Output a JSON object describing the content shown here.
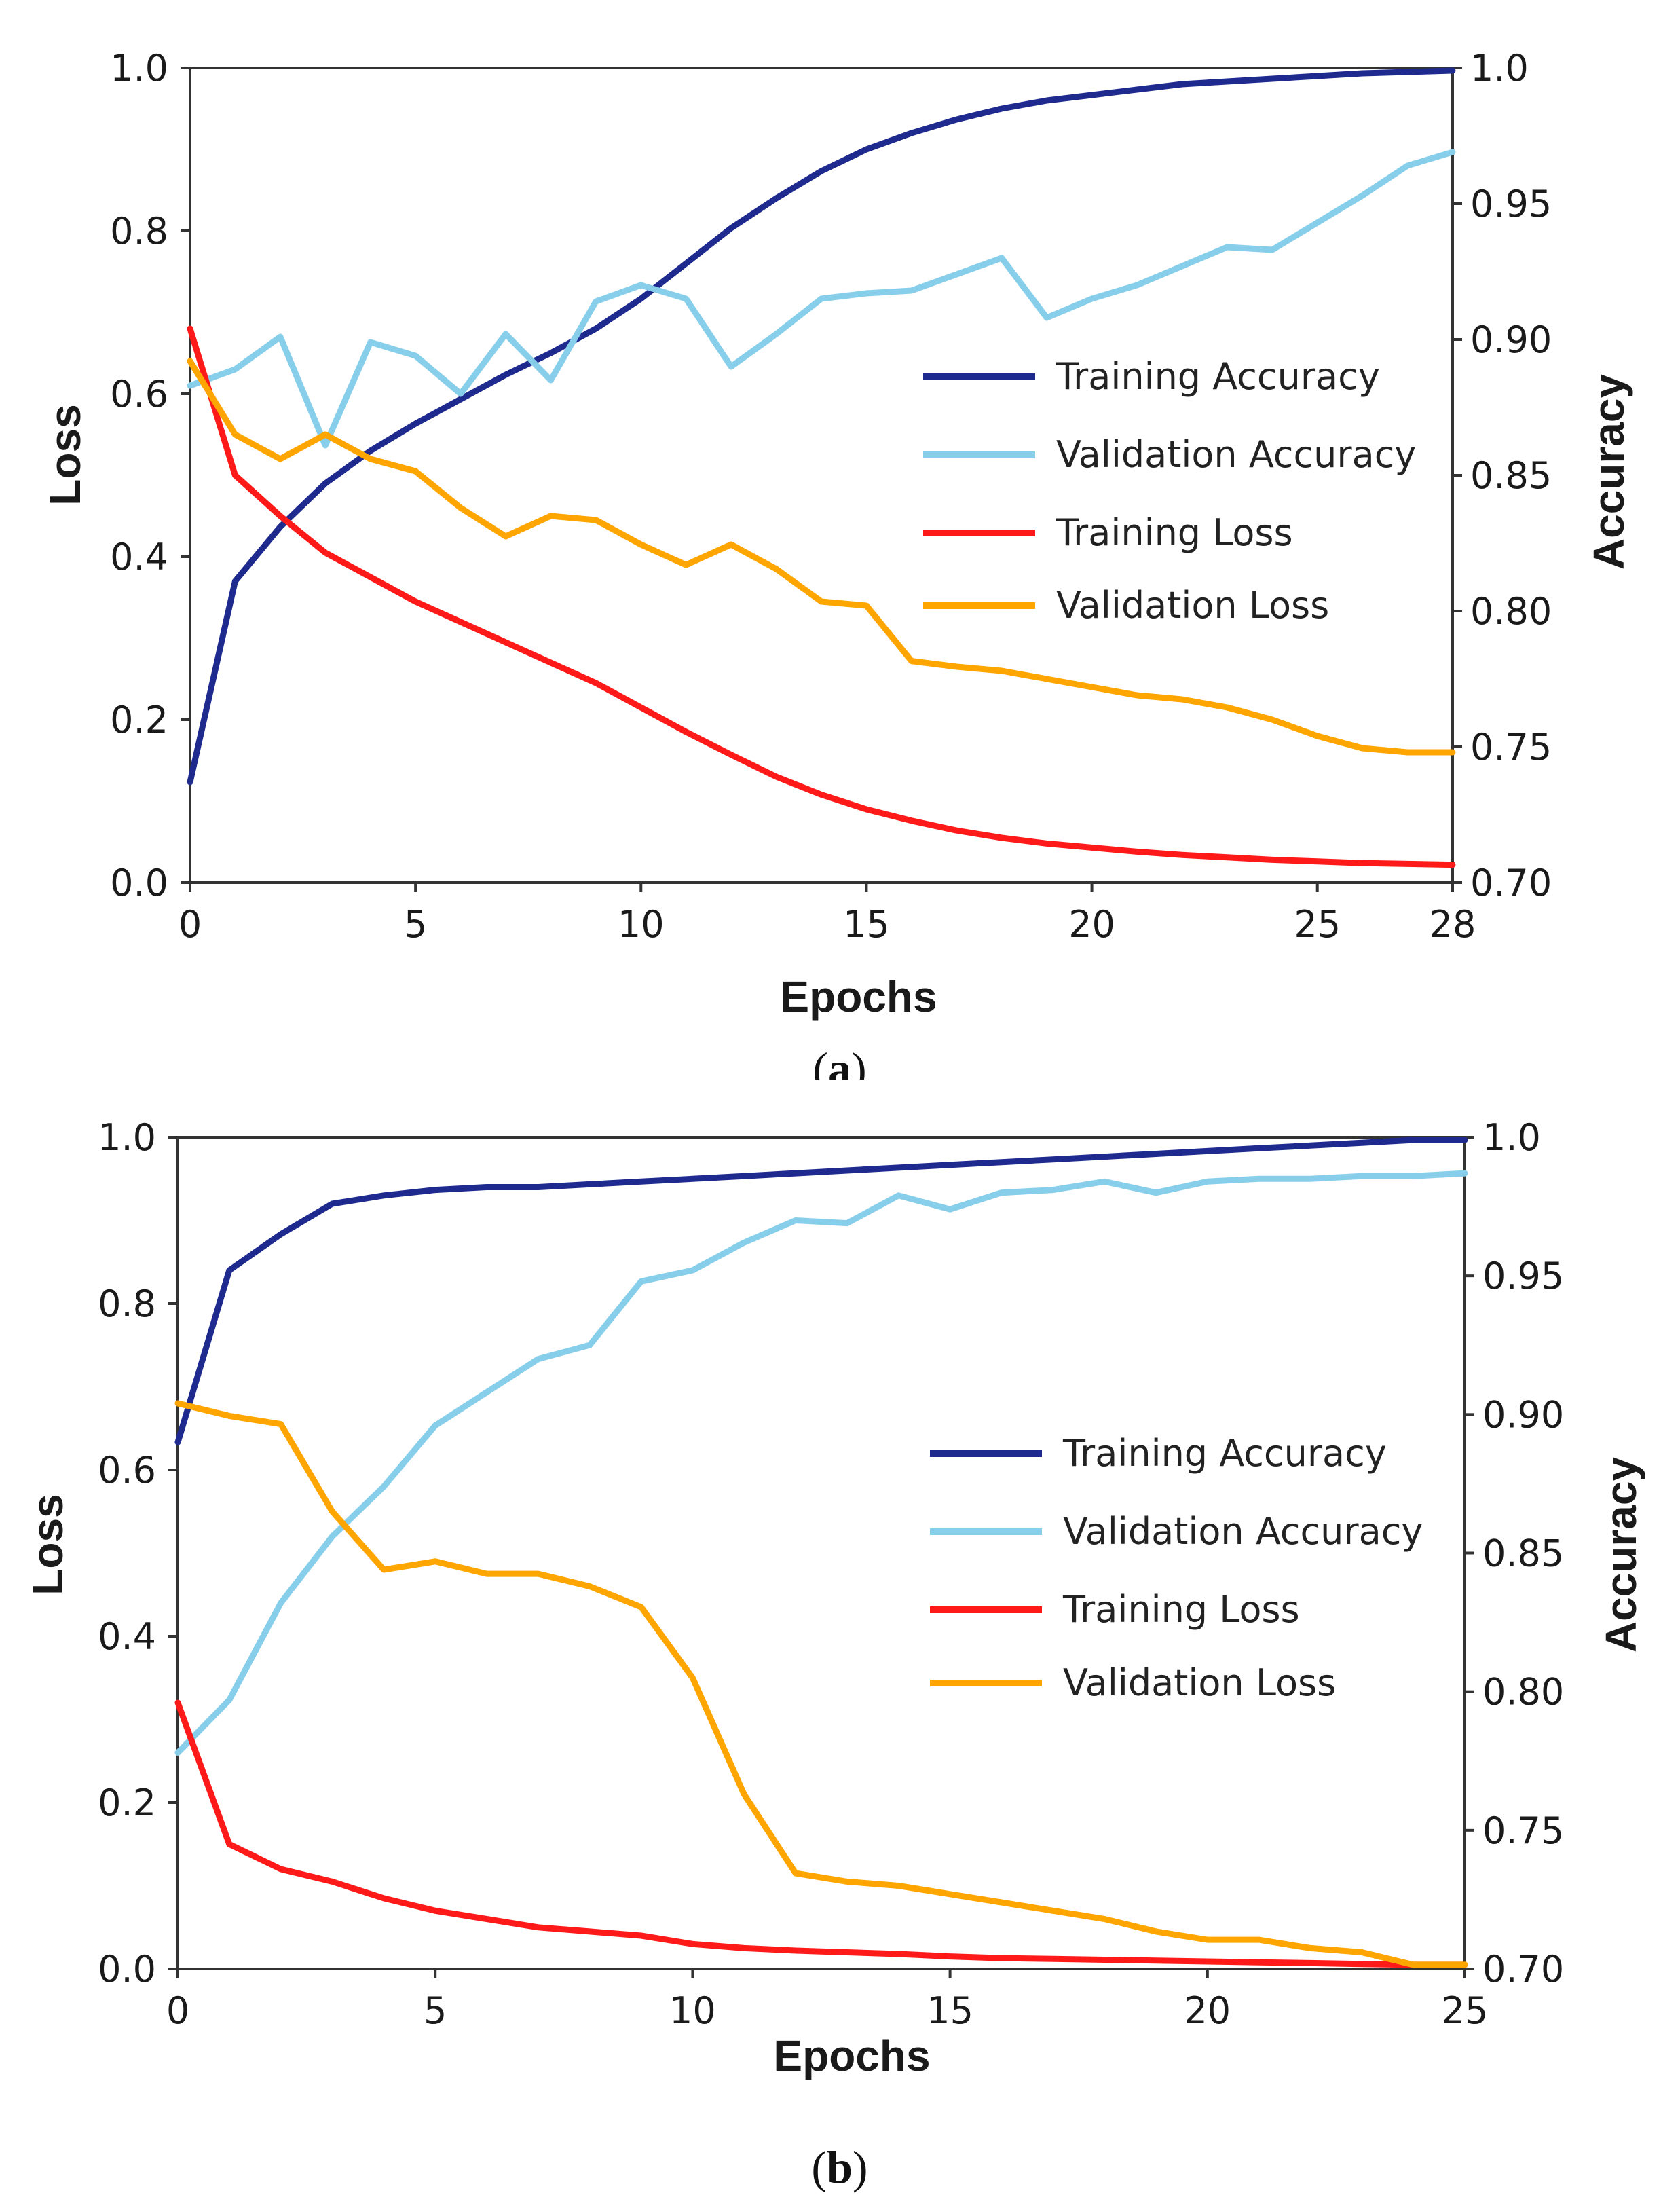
{
  "chart_data": [
    {
      "id": "a",
      "type": "line",
      "caption_letter": "a",
      "xlabel": "Epochs",
      "ylabel_left": "Loss",
      "ylabel_right": "Accuracy",
      "xlim": [
        0,
        28
      ],
      "ylim_left": [
        0.0,
        1.0
      ],
      "ylim_right": [
        0.7,
        1.0
      ],
      "x_ticks": [
        0,
        5,
        10,
        15,
        20,
        25,
        28
      ],
      "x_tick_labels": [
        "0",
        "5",
        "10",
        "15",
        "20",
        "25",
        "28"
      ],
      "left_ticks": [
        0.0,
        0.2,
        0.4,
        0.6,
        0.8,
        1.0
      ],
      "left_tick_labels": [
        "0.0",
        "0.2",
        "0.4",
        "0.6",
        "0.8",
        "1.0"
      ],
      "right_ticks": [
        0.7,
        0.75,
        0.8,
        0.85,
        0.9,
        0.95,
        1.0
      ],
      "right_tick_labels": [
        "0.70",
        "0.75",
        "0.80",
        "0.85",
        "0.90",
        "0.95",
        "1.0"
      ],
      "grid": false,
      "legend_position": "center-right",
      "series": [
        {
          "name": "Training Accuracy",
          "axis": "right",
          "color": "#1f2a8f",
          "x": [
            0,
            1,
            2,
            3,
            4,
            5,
            6,
            7,
            8,
            9,
            10,
            11,
            12,
            13,
            14,
            15,
            16,
            17,
            18,
            19,
            20,
            21,
            22,
            23,
            24,
            25,
            26,
            27,
            28
          ],
          "values": [
            0.737,
            0.811,
            0.831,
            0.847,
            0.859,
            0.869,
            0.878,
            0.887,
            0.895,
            0.904,
            0.915,
            0.928,
            0.941,
            0.952,
            0.962,
            0.97,
            0.976,
            0.981,
            0.985,
            0.988,
            0.99,
            0.992,
            0.994,
            0.995,
            0.996,
            0.997,
            0.998,
            0.9985,
            0.999
          ]
        },
        {
          "name": "Validation Accuracy",
          "axis": "right",
          "color": "#87ceeb",
          "x": [
            0,
            1,
            2,
            3,
            4,
            5,
            6,
            7,
            8,
            9,
            10,
            11,
            12,
            13,
            14,
            15,
            16,
            17,
            18,
            19,
            20,
            21,
            22,
            23,
            24,
            25,
            26,
            27,
            28
          ],
          "values": [
            0.883,
            0.889,
            0.901,
            0.861,
            0.899,
            0.894,
            0.88,
            0.902,
            0.885,
            0.914,
            0.92,
            0.915,
            0.89,
            0.902,
            0.915,
            0.917,
            0.918,
            0.924,
            0.93,
            0.908,
            0.915,
            0.92,
            0.927,
            0.934,
            0.933,
            0.943,
            0.953,
            0.964,
            0.969
          ]
        },
        {
          "name": "Training Loss",
          "axis": "left",
          "color": "#ff1a1a",
          "x": [
            0,
            1,
            2,
            3,
            4,
            5,
            6,
            7,
            8,
            9,
            10,
            11,
            12,
            13,
            14,
            15,
            16,
            17,
            18,
            19,
            20,
            21,
            22,
            23,
            24,
            25,
            26,
            27,
            28
          ],
          "values": [
            0.68,
            0.5,
            0.45,
            0.405,
            0.375,
            0.345,
            0.32,
            0.295,
            0.27,
            0.245,
            0.215,
            0.185,
            0.157,
            0.13,
            0.108,
            0.09,
            0.076,
            0.064,
            0.055,
            0.048,
            0.043,
            0.038,
            0.034,
            0.031,
            0.028,
            0.026,
            0.024,
            0.023,
            0.022
          ]
        },
        {
          "name": "Validation Loss",
          "axis": "left",
          "color": "#ffa500",
          "x": [
            0,
            1,
            2,
            3,
            4,
            5,
            6,
            7,
            8,
            9,
            10,
            11,
            12,
            13,
            14,
            15,
            16,
            17,
            18,
            19,
            20,
            21,
            22,
            23,
            24,
            25,
            26,
            27,
            28
          ],
          "values": [
            0.64,
            0.55,
            0.52,
            0.55,
            0.52,
            0.505,
            0.46,
            0.425,
            0.45,
            0.445,
            0.415,
            0.39,
            0.415,
            0.385,
            0.345,
            0.34,
            0.272,
            0.265,
            0.26,
            0.25,
            0.24,
            0.23,
            0.225,
            0.215,
            0.2,
            0.18,
            0.165,
            0.16,
            0.16
          ]
        }
      ]
    },
    {
      "id": "b",
      "type": "line",
      "caption_letter": "b",
      "xlabel": "Epochs",
      "ylabel_left": "Loss",
      "ylabel_right": "Accuracy",
      "xlim": [
        0,
        25
      ],
      "ylim_left": [
        0.0,
        1.0
      ],
      "ylim_right": [
        0.7,
        1.0
      ],
      "x_ticks": [
        0,
        5,
        10,
        15,
        20,
        25
      ],
      "x_tick_labels": [
        "0",
        "5",
        "10",
        "15",
        "20",
        "25"
      ],
      "left_ticks": [
        0.0,
        0.2,
        0.4,
        0.6,
        0.8,
        1.0
      ],
      "left_tick_labels": [
        "0.0",
        "0.2",
        "0.4",
        "0.6",
        "0.8",
        "1.0"
      ],
      "right_ticks": [
        0.7,
        0.75,
        0.8,
        0.85,
        0.9,
        0.95,
        1.0
      ],
      "right_tick_labels": [
        "0.70",
        "0.75",
        "0.80",
        "0.85",
        "0.90",
        "0.95",
        "1.0"
      ],
      "grid": false,
      "legend_position": "center-right",
      "series": [
        {
          "name": "Training Accuracy",
          "axis": "right",
          "color": "#1f2a8f",
          "x": [
            0,
            1,
            2,
            3,
            4,
            5,
            6,
            7,
            8,
            9,
            10,
            11,
            12,
            13,
            14,
            15,
            16,
            17,
            18,
            19,
            20,
            21,
            22,
            23,
            24,
            25
          ],
          "values": [
            0.89,
            0.952,
            0.965,
            0.976,
            0.979,
            0.981,
            0.982,
            0.982,
            0.983,
            0.984,
            0.985,
            0.986,
            0.987,
            0.988,
            0.989,
            0.99,
            0.991,
            0.992,
            0.993,
            0.994,
            0.995,
            0.996,
            0.997,
            0.998,
            0.999,
            0.999
          ]
        },
        {
          "name": "Validation Accuracy",
          "axis": "right",
          "color": "#87ceeb",
          "x": [
            0,
            1,
            2,
            3,
            4,
            5,
            6,
            7,
            8,
            9,
            10,
            11,
            12,
            13,
            14,
            15,
            16,
            17,
            18,
            19,
            20,
            21,
            22,
            23,
            24,
            25
          ],
          "values": [
            0.778,
            0.797,
            0.832,
            0.856,
            0.874,
            0.896,
            0.908,
            0.92,
            0.925,
            0.948,
            0.952,
            0.962,
            0.97,
            0.969,
            0.979,
            0.974,
            0.98,
            0.981,
            0.984,
            0.98,
            0.984,
            0.985,
            0.985,
            0.986,
            0.986,
            0.987
          ]
        },
        {
          "name": "Training Loss",
          "axis": "left",
          "color": "#ff1a1a",
          "x": [
            0,
            1,
            2,
            3,
            4,
            5,
            6,
            7,
            8,
            9,
            10,
            11,
            12,
            13,
            14,
            15,
            16,
            17,
            18,
            19,
            20,
            21,
            22,
            23,
            24,
            25
          ],
          "values": [
            0.32,
            0.15,
            0.12,
            0.105,
            0.085,
            0.07,
            0.06,
            0.05,
            0.045,
            0.04,
            0.03,
            0.025,
            0.022,
            0.02,
            0.018,
            0.015,
            0.013,
            0.012,
            0.011,
            0.01,
            0.009,
            0.008,
            0.007,
            0.006,
            0.005,
            0.005
          ]
        },
        {
          "name": "Validation Loss",
          "axis": "left",
          "color": "#ffa500",
          "x": [
            0,
            1,
            2,
            3,
            4,
            5,
            6,
            7,
            8,
            9,
            10,
            11,
            12,
            13,
            14,
            15,
            16,
            17,
            18,
            19,
            20,
            21,
            22,
            23,
            24,
            25
          ],
          "values": [
            0.68,
            0.665,
            0.655,
            0.55,
            0.48,
            0.49,
            0.475,
            0.475,
            0.46,
            0.435,
            0.35,
            0.21,
            0.115,
            0.105,
            0.1,
            0.09,
            0.08,
            0.07,
            0.06,
            0.045,
            0.035,
            0.035,
            0.025,
            0.02,
            0.005,
            0.005
          ]
        }
      ]
    }
  ]
}
